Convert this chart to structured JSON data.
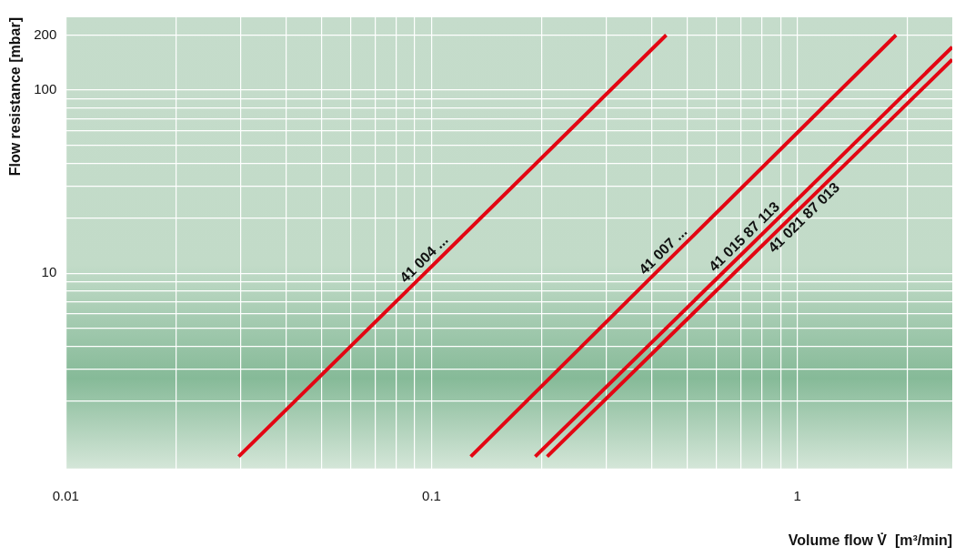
{
  "chart_data": {
    "type": "line",
    "xlabel": "Volume flow V̇  [m³/min]",
    "ylabel": "Flow resistance [mbar]",
    "log": "xy",
    "grid": true,
    "marker": "none",
    "line_style": "solid",
    "legend": false,
    "xlim": [
      0.01,
      2.65
    ],
    "ylim": [
      0.86,
      250
    ],
    "xticks": [
      0.01,
      {
        "value": 0.02,
        "label": null
      },
      {
        "value": 0.03,
        "label": null
      },
      {
        "value": 0.04,
        "label": null
      },
      {
        "value": 0.05,
        "label": null
      },
      {
        "value": 0.06,
        "label": null
      },
      {
        "value": 0.07,
        "label": null
      },
      {
        "value": 0.08,
        "label": null
      },
      {
        "value": 0.09,
        "label": null
      },
      0.1,
      {
        "value": 0.2,
        "label": null
      },
      {
        "value": 0.3,
        "label": null
      },
      {
        "value": 0.4,
        "label": null
      },
      {
        "value": 0.5,
        "label": null
      },
      {
        "value": 0.6,
        "label": null
      },
      {
        "value": 0.7,
        "label": null
      },
      {
        "value": 0.8,
        "label": null
      },
      {
        "value": 0.9,
        "label": null
      },
      1,
      {
        "value": 2,
        "label": null
      }
    ],
    "yticks": [
      {
        "value": 2,
        "label": null
      },
      {
        "value": 3,
        "label": null
      },
      {
        "value": 4,
        "label": null
      },
      {
        "value": 5,
        "label": null
      },
      {
        "value": 6,
        "label": null
      },
      {
        "value": 7,
        "label": null
      },
      {
        "value": 8,
        "label": null
      },
      {
        "value": 9,
        "label": null
      },
      10,
      {
        "value": 20,
        "label": null
      },
      {
        "value": 30,
        "label": null
      },
      {
        "value": 40,
        "label": null
      },
      {
        "value": 50,
        "label": null
      },
      {
        "value": 60,
        "label": null
      },
      {
        "value": 70,
        "label": null
      },
      {
        "value": 80,
        "label": null
      },
      {
        "value": 90,
        "label": null
      },
      100,
      200
    ],
    "series": [
      {
        "name": "41 004 ...",
        "color": "#e30613",
        "x": [
          0.0297,
          0.1,
          0.438
        ],
        "values": [
          1,
          10.9,
          200
        ]
      },
      {
        "name": "41 007 ...",
        "color": "#e30613",
        "x": [
          0.128,
          0.45,
          1.86
        ],
        "values": [
          1,
          12.1,
          200
        ]
      },
      {
        "name": "41 015 87 113",
        "color": "#e30613",
        "x": [
          0.192,
          0.75,
          2.65
        ],
        "values": [
          1,
          14.4,
          172
        ]
      },
      {
        "name": "41 021 87 013",
        "color": "#e30613",
        "x": [
          0.207,
          1.0,
          2.65
        ],
        "values": [
          1,
          21.9,
          147
        ]
      }
    ]
  }
}
